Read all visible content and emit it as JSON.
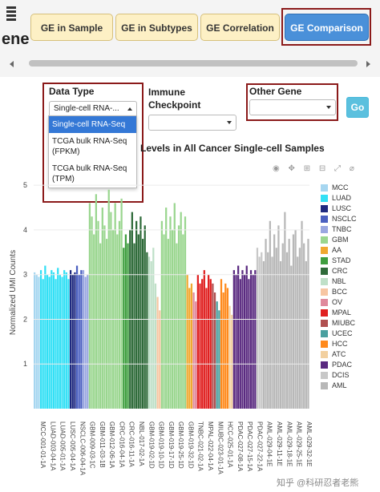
{
  "app": {
    "title": "ene"
  },
  "tabs": [
    {
      "label": "GE in Sample",
      "active": false
    },
    {
      "label": "GE in Subtypes",
      "active": false
    },
    {
      "label": "GE Correlation",
      "active": false
    },
    {
      "label": "GE Comparison",
      "active": true
    }
  ],
  "controls": {
    "data_type_label": "Data Type",
    "data_type_value": "Single-cell RNA-...",
    "data_type_options": [
      "Single-cell RNA-Seq",
      "TCGA bulk RNA-Seq (FPKM)",
      "TCGA bulk RNA-Seq (TPM)"
    ],
    "data_type_selected_index": 0,
    "immune_label_line1": "Immune",
    "immune_label_line2": "Checkpoint",
    "immune_value": "",
    "other_gene_label": "Other Gene",
    "other_gene_value": "",
    "go_label": "Go"
  },
  "chart": {
    "title_fragment": "Levels in All Cancer Single-cell Samples",
    "modebar_icons": [
      "camera-icon",
      "pan-icon",
      "zoom-in-icon",
      "zoom-out-icon",
      "autoscale-icon",
      "reset-icon"
    ]
  },
  "chart_data": {
    "type": "bar",
    "ylabel": "Normalized UMI Counts",
    "ylim": [
      0,
      5.2
    ],
    "yticks": [
      1,
      2,
      3,
      4,
      5
    ],
    "legend_placement": "right",
    "legend": [
      {
        "name": "MCC",
        "color": "#a6d6f0"
      },
      {
        "name": "LUAD",
        "color": "#33e0f5"
      },
      {
        "name": "LUSC",
        "color": "#1f2a80"
      },
      {
        "name": "NSCLC",
        "color": "#4a5fc0"
      },
      {
        "name": "TNBC",
        "color": "#9aa7e0"
      },
      {
        "name": "GBM",
        "color": "#9ad68f"
      },
      {
        "name": "AA",
        "color": "#f0a830"
      },
      {
        "name": "STAD",
        "color": "#3f9e3f"
      },
      {
        "name": "CRC",
        "color": "#2f6b3a"
      },
      {
        "name": "NBL",
        "color": "#bfe0c8"
      },
      {
        "name": "BCC",
        "color": "#f7c6a2"
      },
      {
        "name": "OV",
        "color": "#e08a9c"
      },
      {
        "name": "MPAL",
        "color": "#e02020"
      },
      {
        "name": "MIUBC",
        "color": "#b05050"
      },
      {
        "name": "UCEC",
        "color": "#4aa0a0"
      },
      {
        "name": "HCC",
        "color": "#ff8a1c"
      },
      {
        "name": "ATC",
        "color": "#f2d0a0"
      },
      {
        "name": "PDAC",
        "color": "#5a2a80"
      },
      {
        "name": "DCIS",
        "color": "#c8c8c8"
      },
      {
        "name": "AML",
        "color": "#b8b8b8"
      }
    ],
    "groups": [
      {
        "name": "MCC",
        "values": [
          3.05,
          3.0,
          2.95
        ]
      },
      {
        "name": "LUAD",
        "values": [
          3.1,
          2.9,
          3.2,
          3.0,
          2.95,
          3.1,
          3.05,
          2.9,
          3.15,
          3.0,
          2.95,
          3.1,
          3.05,
          2.9
        ]
      },
      {
        "name": "LUSC",
        "values": [
          3.1,
          3.0,
          3.05
        ]
      },
      {
        "name": "NSCLC",
        "values": [
          3.2,
          3.0,
          3.1
        ]
      },
      {
        "name": "TNBC",
        "values": [
          3.1,
          2.95,
          3.0
        ]
      },
      {
        "name": "GBM",
        "values": [
          4.6,
          4.3,
          3.9,
          4.8,
          4.2,
          3.7,
          4.5,
          4.1,
          3.8,
          4.9,
          4.4,
          4.0,
          4.6,
          3.9,
          4.2,
          4.7
        ]
      },
      {
        "name": "STAD",
        "values": [
          3.6,
          3.9,
          3.7
        ]
      },
      {
        "name": "CRC",
        "values": [
          4.0,
          4.4,
          3.7,
          4.2,
          3.9,
          4.3,
          3.8,
          4.1,
          3.5
        ]
      },
      {
        "name": "NBL",
        "values": [
          3.4,
          3.3,
          3.6,
          2.8
        ]
      },
      {
        "name": "BCC",
        "values": [
          2.5,
          2.2
        ]
      },
      {
        "name": "GBM",
        "values": [
          4.2,
          3.9,
          4.5,
          3.8,
          4.3,
          4.0,
          4.6,
          3.7,
          4.1,
          4.4,
          3.9,
          4.3
        ]
      },
      {
        "name": "AA",
        "values": [
          3.0,
          2.7,
          2.8
        ]
      },
      {
        "name": "OV",
        "values": [
          2.6,
          2.4
        ]
      },
      {
        "name": "MPAL",
        "values": [
          3.0,
          2.8,
          2.9,
          3.1,
          2.7,
          3.0,
          2.9
        ]
      },
      {
        "name": "MIUBC",
        "values": [
          2.8,
          2.6
        ]
      },
      {
        "name": "UCEC",
        "values": [
          2.4,
          2.2
        ]
      },
      {
        "name": "HCC",
        "values": [
          2.9,
          2.6,
          2.8,
          2.7
        ]
      },
      {
        "name": "ATC",
        "values": [
          2.3,
          2.1
        ]
      },
      {
        "name": "PDAC",
        "values": [
          3.1,
          3.0,
          3.2,
          2.9,
          3.1,
          3.0,
          3.2,
          2.9,
          3.1,
          3.0,
          3.1
        ]
      },
      {
        "name": "DCIS",
        "values": [
          3.6,
          3.4,
          3.5
        ]
      },
      {
        "name": "AML",
        "values": [
          3.3,
          3.8,
          3.5,
          4.2,
          3.4,
          3.9,
          3.6,
          4.1,
          3.3,
          3.7,
          4.4,
          3.5,
          3.8,
          3.2,
          3.9,
          4.0,
          3.4,
          3.6,
          4.2,
          3.7,
          3.3,
          3.8
        ]
      }
    ],
    "x_tick_labels": [
      "MCC-001-01-1A",
      "LUAD-003-04-1A",
      "LUAD-005-01-1A",
      "LUSC-005-04-1A",
      "NSCLC-006-04-1A",
      "GBM-009-03-1C",
      "GBM-011-03-1B",
      "GBM-012-06-1A",
      "CRC-016-04-1A",
      "CRC-016-11-1A",
      "NBL-017-02-1A",
      "GBM-019-02-1D",
      "GBM-019-10-1D",
      "GBM-019-17-1D",
      "GBM-019-25-1D",
      "GBM-019-32-1D",
      "TNBC-021-02-1A",
      "MPAL-022-04-1A",
      "MIUBC-023-01-1A",
      "HCC-025-01-1A",
      "PDAC-027-08-1A",
      "PDAC-027-15-1A",
      "PDAC-027-22-1A",
      "AML-029-04-1E",
      "AML-029-11-1E",
      "AML-029-18-1E",
      "AML-029-25-1E",
      "AML-029-32-1E"
    ]
  },
  "watermark": "知乎 @科研忍者老熊"
}
